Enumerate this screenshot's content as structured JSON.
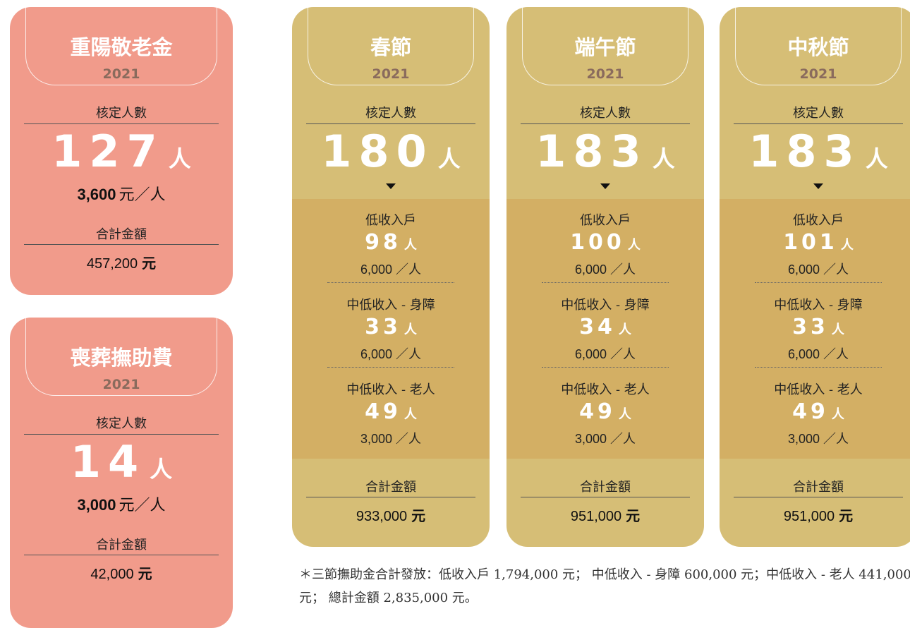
{
  "left_cards": [
    {
      "title": "重陽敬老金",
      "year": "2021",
      "count_label": "核定人數",
      "count": "127",
      "unit": "人",
      "rate": "3,600",
      "rate_unit": "元／人",
      "total_label": "合計金額",
      "total": "457,200",
      "total_unit": "元"
    },
    {
      "title": "喪葬撫助費",
      "year": "2021",
      "count_label": "核定人數",
      "count": "14",
      "unit": "人",
      "rate": "3,000",
      "rate_unit": "元／人",
      "total_label": "合計金額",
      "total": "42,000",
      "total_unit": "元"
    }
  ],
  "right_cards": [
    {
      "title": "春節",
      "year": "2021",
      "count_label": "核定人數",
      "count": "180",
      "unit": "人",
      "groups": [
        {
          "label": "低收入戶",
          "count": "98",
          "unit": "人",
          "rate": "6,000 ／人"
        },
        {
          "label": "中低收入 - 身障",
          "count": "33",
          "unit": "人",
          "rate": "6,000 ／人"
        },
        {
          "label": "中低收入 - 老人",
          "count": "49",
          "unit": "人",
          "rate": "3,000 ／人"
        }
      ],
      "total_label": "合計金額",
      "total": "933,000",
      "total_unit": "元"
    },
    {
      "title": "端午節",
      "year": "2021",
      "count_label": "核定人數",
      "count": "183",
      "unit": "人",
      "groups": [
        {
          "label": "低收入戶",
          "count": "100",
          "unit": "人",
          "rate": "6,000 ／人"
        },
        {
          "label": "中低收入 - 身障",
          "count": "34",
          "unit": "人",
          "rate": "6,000 ／人"
        },
        {
          "label": "中低收入 - 老人",
          "count": "49",
          "unit": "人",
          "rate": "3,000 ／人"
        }
      ],
      "total_label": "合計金額",
      "total": "951,000",
      "total_unit": "元"
    },
    {
      "title": "中秋節",
      "year": "2021",
      "count_label": "核定人數",
      "count": "183",
      "unit": "人",
      "groups": [
        {
          "label": "低收入戶",
          "count": "101",
          "unit": "人",
          "rate": "6,000 ／人"
        },
        {
          "label": "中低收入 - 身障",
          "count": "33",
          "unit": "人",
          "rate": "6,000 ／人"
        },
        {
          "label": "中低收入 - 老人",
          "count": "49",
          "unit": "人",
          "rate": "3,000 ／人"
        }
      ],
      "total_label": "合計金額",
      "total": "951,000",
      "total_unit": "元"
    }
  ],
  "note": "＊三節撫助金合計發放：低收入戶 1,794,000 元； 中低收入 - 身障 600,000 元；中低收入 - 老人 441,000 元； 總計金額 2,835,000 元。"
}
